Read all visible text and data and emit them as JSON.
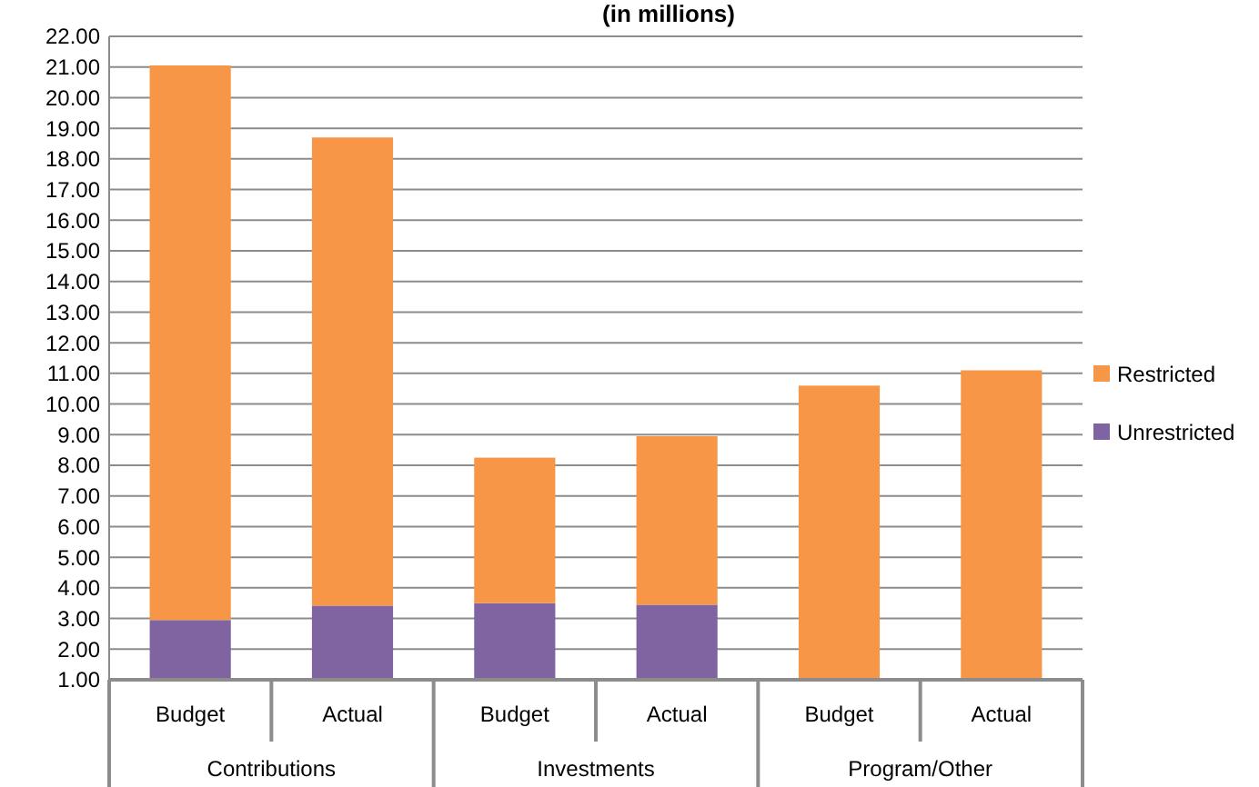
{
  "chart_data": {
    "type": "bar",
    "title": "(in millions)",
    "stacked": true,
    "categories": [
      "Budget",
      "Actual",
      "Budget",
      "Actual",
      "Budget",
      "Actual"
    ],
    "series": [
      {
        "name": "Unrestricted",
        "color": "#8064a2",
        "values": [
          2.95,
          3.42,
          3.5,
          3.45,
          null,
          null
        ]
      },
      {
        "name": "Restricted",
        "color": "#f79646",
        "values": [
          18.1,
          15.28,
          4.75,
          5.5,
          10.6,
          11.1
        ]
      }
    ],
    "annotations": [
      "Contributions",
      "Investments",
      "Program/Other"
    ],
    "ylim": [
      1,
      22
    ],
    "yticks": [
      {
        "value": 1,
        "label": "1.00"
      },
      {
        "value": 2,
        "label": "2.00"
      },
      {
        "value": 3,
        "label": "3.00"
      },
      {
        "value": 4,
        "label": "4.00"
      },
      {
        "value": 5,
        "label": "5.00"
      },
      {
        "value": 6,
        "label": "6.00"
      },
      {
        "value": 7,
        "label": "7.00"
      },
      {
        "value": 8,
        "label": "8.00"
      },
      {
        "value": 9,
        "label": "9.00"
      },
      {
        "value": 10,
        "label": "10.00"
      },
      {
        "value": 11,
        "label": "11.00"
      },
      {
        "value": 12,
        "label": "12.00"
      },
      {
        "value": 13,
        "label": "13.00"
      },
      {
        "value": 14,
        "label": "14.00"
      },
      {
        "value": 15,
        "label": "15.00"
      },
      {
        "value": 16,
        "label": "16.00"
      },
      {
        "value": 17,
        "label": "17.00"
      },
      {
        "value": 18,
        "label": "18.00"
      },
      {
        "value": 19,
        "label": "19.00"
      },
      {
        "value": 20,
        "label": "20.00"
      },
      {
        "value": 21,
        "label": "21.00"
      },
      {
        "value": 22,
        "label": "22.00"
      }
    ],
    "grid": "y",
    "legend": "right"
  }
}
